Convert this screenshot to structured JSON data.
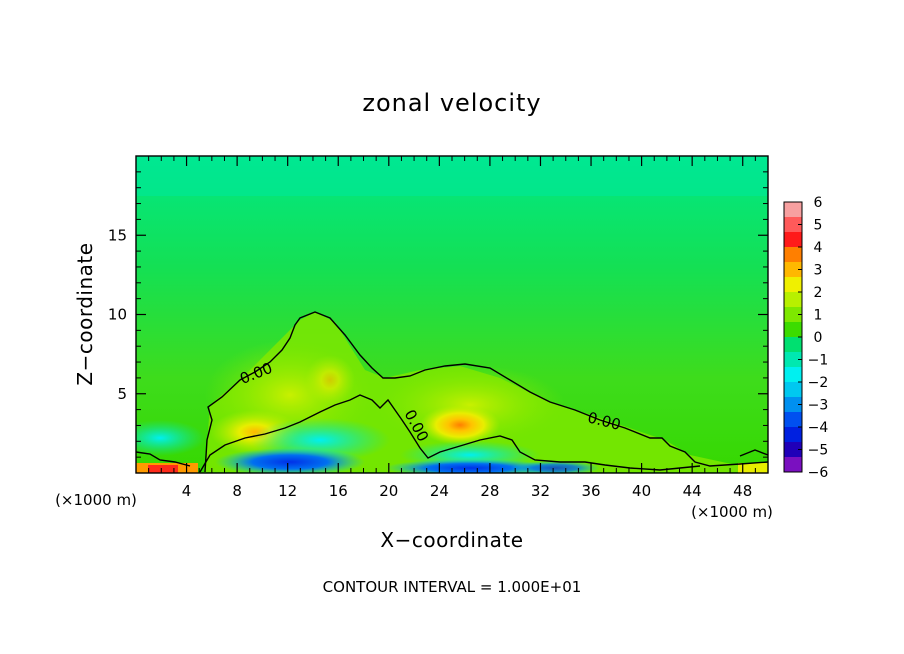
{
  "chart_data": {
    "type": "heatmap",
    "title": "zonal velocity",
    "xlabel": "X−coordinate",
    "ylabel": "Z−coordinate",
    "x_unit": "(×1000 m)",
    "xlim": [
      0,
      50
    ],
    "ylim": [
      0,
      20
    ],
    "xticks": [
      4,
      8,
      12,
      16,
      20,
      24,
      28,
      32,
      36,
      40,
      44,
      48
    ],
    "yticks": [
      5,
      10,
      15
    ],
    "colorbar": {
      "ticks": [
        6,
        5,
        4,
        3,
        2,
        1,
        0,
        -1,
        -2,
        -3,
        -4,
        -5,
        -6
      ],
      "colors": [
        "#f7a0a0",
        "#ff5a5a",
        "#ff1a1a",
        "#ff7f00",
        "#ffb800",
        "#f0f000",
        "#b8f000",
        "#7ee800",
        "#3cdc00",
        "#00e070",
        "#00e8b0",
        "#00f0f0",
        "#00c8f0",
        "#0090f0",
        "#0050f0",
        "#0020e0",
        "#2000b8",
        "#7a10c0"
      ]
    },
    "contour_labels": [
      "0.00",
      "0.00",
      "0.00"
    ],
    "footer": "CONTOUR INTERVAL = 1.000E+01"
  }
}
